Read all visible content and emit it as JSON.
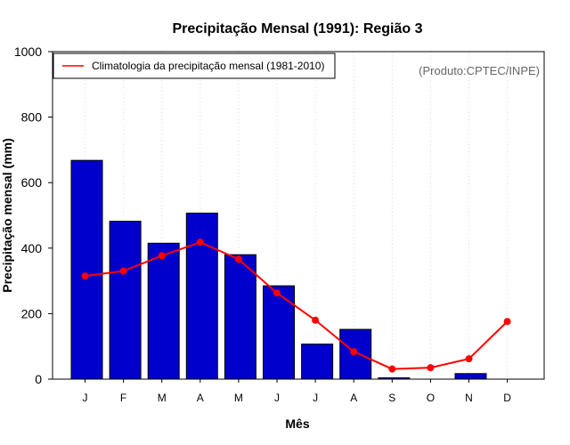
{
  "chart_data": {
    "type": "bar",
    "title": "Precipitação Mensal (1991): Região 3",
    "xlabel": "Mês",
    "ylabel": "Precipitação mensal (mm)",
    "ylim": [
      0,
      1000
    ],
    "yticks": [
      0,
      200,
      400,
      600,
      800,
      1000
    ],
    "categories": [
      "J",
      "F",
      "M",
      "A",
      "M",
      "J",
      "J",
      "A",
      "S",
      "O",
      "N",
      "D"
    ],
    "series": [
      {
        "name": "Precipitação mensal (1991)",
        "type": "bar",
        "color": "#0000cc",
        "values": [
          668,
          482,
          415,
          507,
          380,
          285,
          107,
          152,
          4,
          0,
          17,
          0
        ]
      },
      {
        "name": "Climatologia da precipitação mensal (1981-2010)",
        "type": "line",
        "color": "#ff0000",
        "values": [
          315,
          330,
          377,
          418,
          366,
          263,
          180,
          84,
          31,
          35,
          62,
          176
        ]
      }
    ],
    "legend": {
      "position": "top-left",
      "entries": [
        "Climatologia da precipitação mensal (1981-2010)"
      ]
    },
    "grid": "vertical-dotted",
    "annotation": "(Produto:CPTEC/INPE)"
  }
}
